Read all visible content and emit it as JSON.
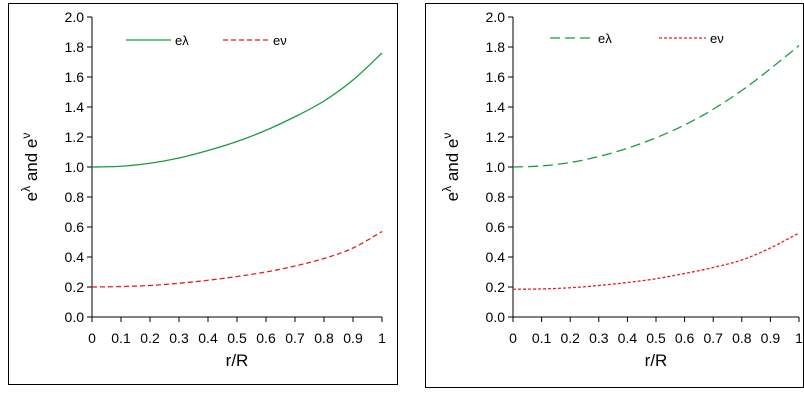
{
  "chart_data": [
    {
      "type": "line",
      "title": "",
      "xlabel": "r/R",
      "ylabel_base": "e",
      "ylabel_sup1": "λ",
      "ylabel_mid": " and e",
      "ylabel_sup2": "ν",
      "xlim": [
        0,
        1
      ],
      "ylim": [
        0,
        2
      ],
      "grid": false,
      "legend_position": "top",
      "x_ticks": [
        "0",
        "0.1",
        "0.2",
        "0.3",
        "0.4",
        "0.5",
        "0.6",
        "0.7",
        "0.8",
        "0.9",
        "1"
      ],
      "y_ticks": [
        "0.0",
        "0.2",
        "0.4",
        "0.6",
        "0.8",
        "1.0",
        "1.2",
        "1.4",
        "1.6",
        "1.8",
        "2.0"
      ],
      "x": [
        0,
        0.1,
        0.2,
        0.3,
        0.4,
        0.5,
        0.6,
        0.7,
        0.8,
        0.9,
        1.0
      ],
      "series": [
        {
          "name": "eλ",
          "color": "#1a9c3e",
          "dash": "solid",
          "values": [
            1.0,
            1.005,
            1.025,
            1.06,
            1.11,
            1.17,
            1.245,
            1.335,
            1.44,
            1.58,
            1.76
          ]
        },
        {
          "name": "eν",
          "color": "#e02020",
          "dash": "dashed",
          "values": [
            0.2,
            0.203,
            0.21,
            0.225,
            0.245,
            0.27,
            0.3,
            0.34,
            0.39,
            0.46,
            0.57
          ]
        }
      ]
    },
    {
      "type": "line",
      "title": "",
      "xlabel": "r/R",
      "ylabel_base": "e",
      "ylabel_sup1": "λ",
      "ylabel_mid": " and e",
      "ylabel_sup2": "ν",
      "xlim": [
        0,
        1
      ],
      "ylim": [
        0,
        2
      ],
      "grid": false,
      "legend_position": "top",
      "x_ticks": [
        "0",
        "0.1",
        "0.2",
        "0.3",
        "0.4",
        "0.5",
        "0.6",
        "0.7",
        "0.8",
        "0.9",
        "1"
      ],
      "y_ticks": [
        "0.0",
        "0.2",
        "0.4",
        "0.6",
        "0.8",
        "1.0",
        "1.2",
        "1.4",
        "1.6",
        "1.8",
        "2.0"
      ],
      "x": [
        0,
        0.1,
        0.2,
        0.3,
        0.4,
        0.5,
        0.6,
        0.7,
        0.8,
        0.9,
        1.0
      ],
      "series": [
        {
          "name": "eλ",
          "color": "#1a9c3e",
          "dash": "longdash",
          "values": [
            1.0,
            1.007,
            1.03,
            1.07,
            1.125,
            1.195,
            1.28,
            1.385,
            1.51,
            1.655,
            1.81
          ]
        },
        {
          "name": "eν",
          "color": "#e02020",
          "dash": "dotted",
          "values": [
            0.185,
            0.187,
            0.195,
            0.21,
            0.23,
            0.255,
            0.29,
            0.33,
            0.38,
            0.46,
            0.56
          ]
        }
      ]
    }
  ]
}
